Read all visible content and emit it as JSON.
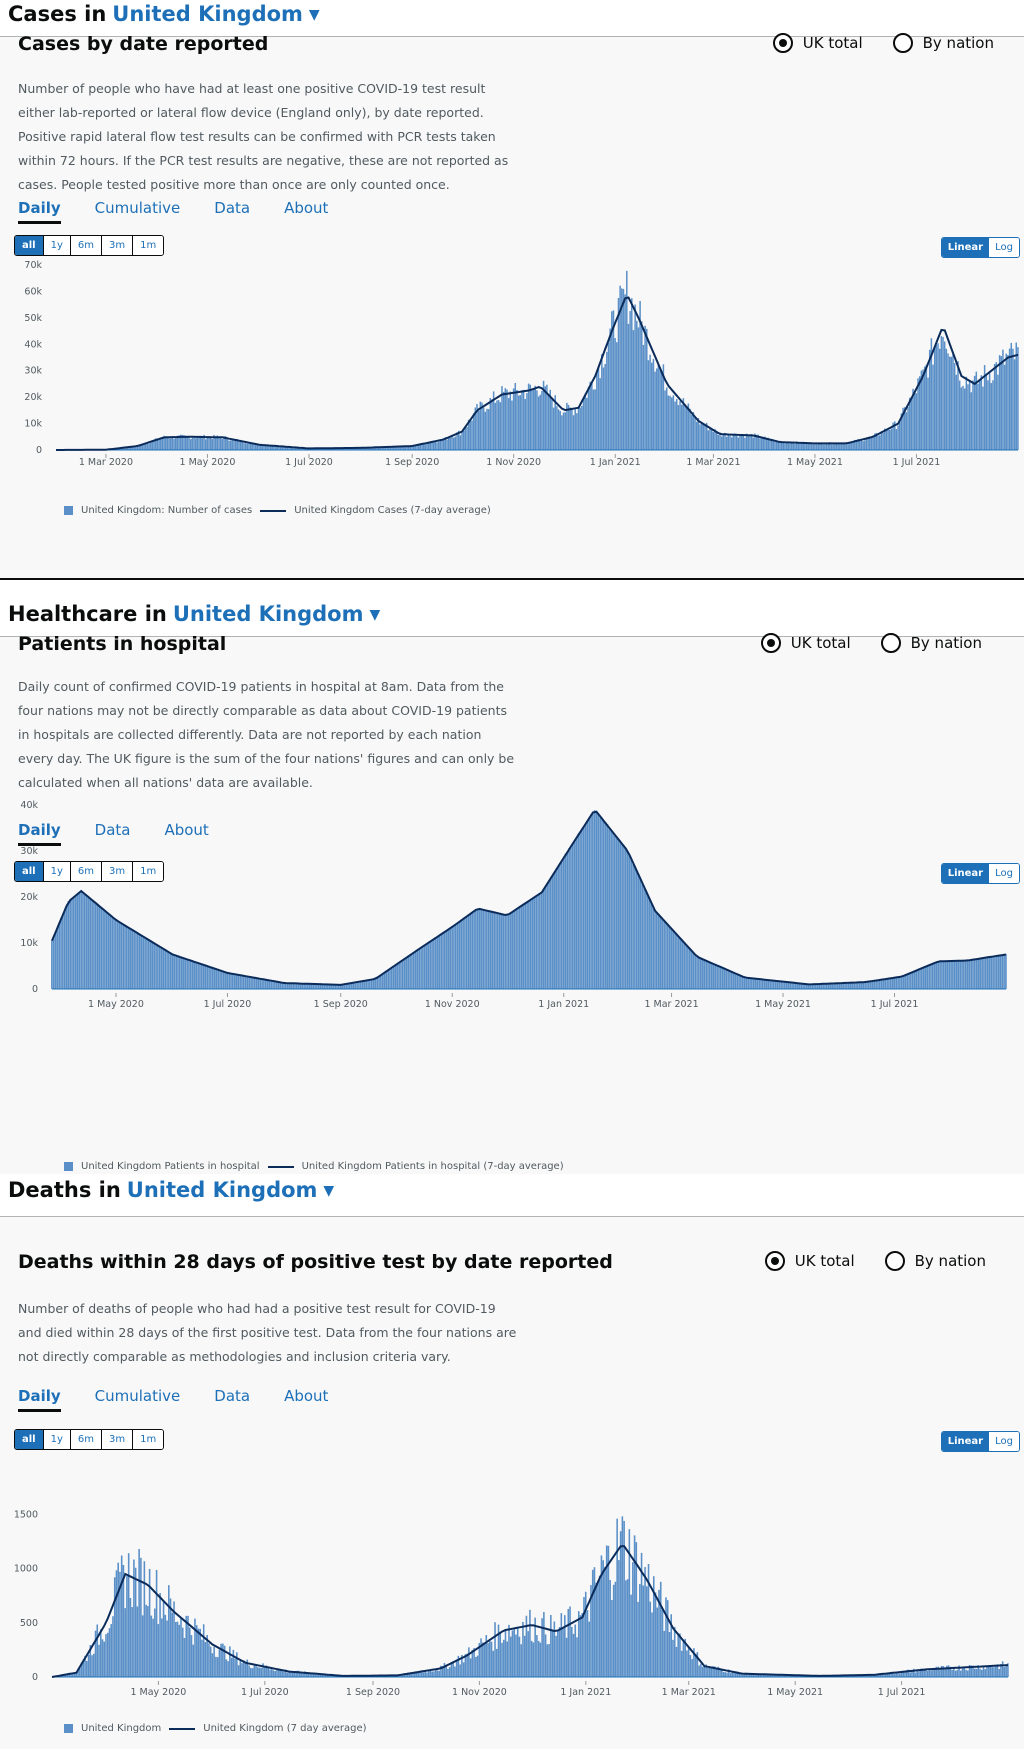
{
  "sections": [
    {
      "heading_prefix": "Cases in",
      "area": "United Kingdom",
      "card": {
        "title": "Cases by date reported",
        "description": "Number of people who have had at least one positive COVID-19 test result either lab-reported or lateral flow device (England only), by date reported. Positive rapid lateral flow test results can be confirmed with PCR tests taken within 72 hours. If the PCR test results are negative, these are not reported as cases. People tested positive more than once are only counted once.",
        "radios": [
          {
            "label": "UK total",
            "checked": true
          },
          {
            "label": "By nation",
            "checked": false
          }
        ],
        "tabs": [
          {
            "label": "Daily",
            "active": true
          },
          {
            "label": "Cumulative",
            "active": false
          },
          {
            "label": "Data",
            "active": false
          },
          {
            "label": "About",
            "active": false
          }
        ],
        "ranges": [
          {
            "label": "all",
            "active": true
          },
          {
            "label": "1y",
            "active": false
          },
          {
            "label": "6m",
            "active": false
          },
          {
            "label": "3m",
            "active": false
          },
          {
            "label": "1m",
            "active": false
          }
        ],
        "scales": [
          {
            "label": "Linear",
            "active": true
          },
          {
            "label": "Log",
            "active": false
          }
        ],
        "legend": {
          "bars": "United Kingdom: Number of cases",
          "line": "United Kingdom Cases (7-day average)"
        }
      }
    },
    {
      "heading_prefix": "Healthcare in",
      "area": "United Kingdom",
      "card": {
        "title": "Patients in hospital",
        "description": "Daily count of confirmed COVID-19 patients in hospital at 8am. Data from the four nations may not be directly comparable as data about COVID-19 patients in hospitals are collected differently. Data are not reported by each nation every day. The UK figure is the sum of the four nations' figures and can only be calculated when all nations' data are available.",
        "radios": [
          {
            "label": "UK total",
            "checked": true
          },
          {
            "label": "By nation",
            "checked": false
          }
        ],
        "tabs": [
          {
            "label": "Daily",
            "active": true
          },
          {
            "label": "Data",
            "active": false
          },
          {
            "label": "About",
            "active": false
          }
        ],
        "ranges": [
          {
            "label": "all",
            "active": true
          },
          {
            "label": "1y",
            "active": false
          },
          {
            "label": "6m",
            "active": false
          },
          {
            "label": "3m",
            "active": false
          },
          {
            "label": "1m",
            "active": false
          }
        ],
        "scales": [
          {
            "label": "Linear",
            "active": true
          },
          {
            "label": "Log",
            "active": false
          }
        ],
        "legend": {
          "bars": "United Kingdom Patients in hospital",
          "line": "United Kingdom Patients in hospital (7-day average)"
        }
      }
    },
    {
      "heading_prefix": "Deaths in",
      "area": "United Kingdom",
      "card": {
        "title": "Deaths within 28 days of positive test by date reported",
        "description": "Number of deaths of people who had had a positive test result for COVID-19 and died within 28 days of the first positive test. Data from the four nations are not directly comparable as methodologies and inclusion criteria vary.",
        "radios": [
          {
            "label": "UK total",
            "checked": true
          },
          {
            "label": "By nation",
            "checked": false
          }
        ],
        "tabs": [
          {
            "label": "Daily",
            "active": true
          },
          {
            "label": "Cumulative",
            "active": false
          },
          {
            "label": "Data",
            "active": false
          },
          {
            "label": "About",
            "active": false
          }
        ],
        "ranges": [
          {
            "label": "all",
            "active": true
          },
          {
            "label": "1y",
            "active": false
          },
          {
            "label": "6m",
            "active": false
          },
          {
            "label": "3m",
            "active": false
          },
          {
            "label": "1m",
            "active": false
          }
        ],
        "scales": [
          {
            "label": "Linear",
            "active": true
          },
          {
            "label": "Log",
            "active": false
          }
        ],
        "legend": {
          "bars": "United Kingdom",
          "line": "United Kingdom (7 day average)"
        }
      }
    }
  ],
  "colors": {
    "accent": "#1d70b8",
    "bar": "#5a8fc7",
    "line": "#0b2b5a",
    "text": "#0b0c0c",
    "muted": "#505a5f"
  },
  "chart_data": [
    {
      "type": "bar",
      "title": "Cases by date reported",
      "xlabel": "",
      "ylabel": "",
      "ylim": [
        0,
        70000
      ],
      "y_ticks": [
        0,
        10000,
        20000,
        30000,
        40000,
        50000,
        60000,
        70000
      ],
      "y_tick_labels": [
        "0",
        "10k",
        "20k",
        "30k",
        "40k",
        "50k",
        "60k",
        "70k"
      ],
      "x_range": [
        "2020-01-31",
        "2021-08-31"
      ],
      "x_ticks": [
        "2020-03-01",
        "2020-05-01",
        "2020-07-01",
        "2020-09-01",
        "2020-11-01",
        "2021-01-01",
        "2021-03-01",
        "2021-05-01",
        "2021-07-01"
      ],
      "x_tick_labels": [
        "1 Mar 2020",
        "1 May 2020",
        "1 Jul 2020",
        "1 Sep 2020",
        "1 Nov 2020",
        "1 Jan 2021",
        "1 Mar 2021",
        "1 May 2021",
        "1 Jul 2021"
      ],
      "grid": false,
      "legend_position": "bottom-left",
      "series": [
        {
          "name": "United Kingdom: Number of cases",
          "kind": "bars",
          "noise": 0.18
        },
        {
          "name": "United Kingdom Cases (7-day average)",
          "kind": "line",
          "points": [
            [
              "2020-01-31",
              0
            ],
            [
              "2020-03-01",
              100
            ],
            [
              "2020-03-20",
              1500
            ],
            [
              "2020-04-05",
              4800
            ],
            [
              "2020-04-20",
              5000
            ],
            [
              "2020-05-10",
              4800
            ],
            [
              "2020-06-01",
              2000
            ],
            [
              "2020-07-01",
              600
            ],
            [
              "2020-08-01",
              800
            ],
            [
              "2020-09-01",
              1500
            ],
            [
              "2020-09-20",
              4000
            ],
            [
              "2020-10-01",
              7000
            ],
            [
              "2020-10-10",
              15000
            ],
            [
              "2020-10-25",
              21000
            ],
            [
              "2020-11-10",
              22500
            ],
            [
              "2020-11-17",
              24000
            ],
            [
              "2020-12-01",
              15000
            ],
            [
              "2020-12-10",
              16000
            ],
            [
              "2020-12-20",
              28000
            ],
            [
              "2020-12-30",
              45000
            ],
            [
              "2021-01-08",
              59000
            ],
            [
              "2021-01-15",
              50000
            ],
            [
              "2021-02-01",
              25000
            ],
            [
              "2021-02-20",
              11000
            ],
            [
              "2021-03-05",
              6000
            ],
            [
              "2021-03-25",
              5500
            ],
            [
              "2021-04-10",
              3000
            ],
            [
              "2021-05-01",
              2500
            ],
            [
              "2021-05-20",
              2500
            ],
            [
              "2021-06-05",
              5000
            ],
            [
              "2021-06-20",
              10000
            ],
            [
              "2021-07-05",
              28000
            ],
            [
              "2021-07-17",
              47000
            ],
            [
              "2021-07-28",
              28000
            ],
            [
              "2021-08-05",
              25000
            ],
            [
              "2021-08-15",
              30000
            ],
            [
              "2021-08-25",
              35000
            ],
            [
              "2021-08-31",
              36000
            ]
          ]
        }
      ]
    },
    {
      "type": "bar",
      "title": "Patients in hospital",
      "xlabel": "",
      "ylabel": "",
      "ylim": [
        0,
        40000
      ],
      "y_ticks": [
        0,
        10000,
        20000,
        30000,
        40000
      ],
      "y_tick_labels": [
        "0",
        "10k",
        "20k",
        "30k",
        "40k"
      ],
      "x_range": [
        "2020-03-27",
        "2021-08-31"
      ],
      "x_ticks": [
        "2020-05-01",
        "2020-07-01",
        "2020-09-01",
        "2020-11-01",
        "2021-01-01",
        "2021-03-01",
        "2021-05-01",
        "2021-07-01"
      ],
      "x_tick_labels": [
        "1 May 2020",
        "1 Jul 2020",
        "1 Sep 2020",
        "1 Nov 2020",
        "1 Jan 2021",
        "1 Mar 2021",
        "1 May 2021",
        "1 Jul 2021"
      ],
      "grid": false,
      "legend_position": "bottom-left",
      "series": [
        {
          "name": "United Kingdom Patients in hospital",
          "kind": "bars",
          "noise": 0.01
        },
        {
          "name": "United Kingdom Patients in hospital (7-day average)",
          "kind": "line",
          "points": [
            [
              "2020-03-27",
              10500
            ],
            [
              "2020-04-05",
              19000
            ],
            [
              "2020-04-12",
              21300
            ],
            [
              "2020-05-01",
              15000
            ],
            [
              "2020-06-01",
              7500
            ],
            [
              "2020-07-01",
              3500
            ],
            [
              "2020-08-01",
              1300
            ],
            [
              "2020-09-01",
              900
            ],
            [
              "2020-09-20",
              2200
            ],
            [
              "2020-10-15",
              9000
            ],
            [
              "2020-11-01",
              13500
            ],
            [
              "2020-11-15",
              17500
            ],
            [
              "2020-12-01",
              16000
            ],
            [
              "2020-12-20",
              21000
            ],
            [
              "2021-01-05",
              31000
            ],
            [
              "2021-01-18",
              39000
            ],
            [
              "2021-02-05",
              30000
            ],
            [
              "2021-02-20",
              17000
            ],
            [
              "2021-03-15",
              7000
            ],
            [
              "2021-04-10",
              2500
            ],
            [
              "2021-05-15",
              1000
            ],
            [
              "2021-06-15",
              1500
            ],
            [
              "2021-07-05",
              2700
            ],
            [
              "2021-07-25",
              6000
            ],
            [
              "2021-08-10",
              6200
            ],
            [
              "2021-08-31",
              7500
            ]
          ]
        }
      ]
    },
    {
      "type": "bar",
      "title": "Deaths within 28 days of positive test by date reported",
      "xlabel": "",
      "ylabel": "",
      "ylim": [
        0,
        1900
      ],
      "y_ticks": [
        0,
        500,
        1000,
        1500
      ],
      "y_tick_labels": [
        "0",
        "500",
        "1000",
        "1500"
      ],
      "x_range": [
        "2020-03-01",
        "2021-08-31"
      ],
      "x_ticks": [
        "2020-05-01",
        "2020-07-01",
        "2020-09-01",
        "2020-11-01",
        "2021-01-01",
        "2021-03-01",
        "2021-05-01",
        "2021-07-01"
      ],
      "x_tick_labels": [
        "1 May 2020",
        "1 Jul 2020",
        "1 Sep 2020",
        "1 Nov 2020",
        "1 Jan 2021",
        "1 Mar 2021",
        "1 May 2021",
        "1 Jul 2021"
      ],
      "grid": false,
      "legend_position": "bottom-left",
      "series": [
        {
          "name": "United Kingdom",
          "kind": "bars",
          "noise": 0.35
        },
        {
          "name": "United Kingdom (7 day average)",
          "kind": "line",
          "points": [
            [
              "2020-03-01",
              0
            ],
            [
              "2020-03-15",
              40
            ],
            [
              "2020-04-01",
              500
            ],
            [
              "2020-04-12",
              950
            ],
            [
              "2020-04-25",
              850
            ],
            [
              "2020-05-10",
              600
            ],
            [
              "2020-06-01",
              300
            ],
            [
              "2020-06-20",
              130
            ],
            [
              "2020-07-15",
              50
            ],
            [
              "2020-08-15",
              10
            ],
            [
              "2020-09-15",
              15
            ],
            [
              "2020-10-10",
              80
            ],
            [
              "2020-10-25",
              200
            ],
            [
              "2020-11-15",
              430
            ],
            [
              "2020-12-01",
              480
            ],
            [
              "2020-12-15",
              420
            ],
            [
              "2020-12-30",
              550
            ],
            [
              "2021-01-10",
              950
            ],
            [
              "2021-01-22",
              1230
            ],
            [
              "2021-02-05",
              900
            ],
            [
              "2021-02-20",
              450
            ],
            [
              "2021-03-10",
              100
            ],
            [
              "2021-04-01",
              30
            ],
            [
              "2021-05-15",
              10
            ],
            [
              "2021-06-15",
              20
            ],
            [
              "2021-07-15",
              70
            ],
            [
              "2021-08-31",
              110
            ]
          ]
        }
      ]
    }
  ]
}
